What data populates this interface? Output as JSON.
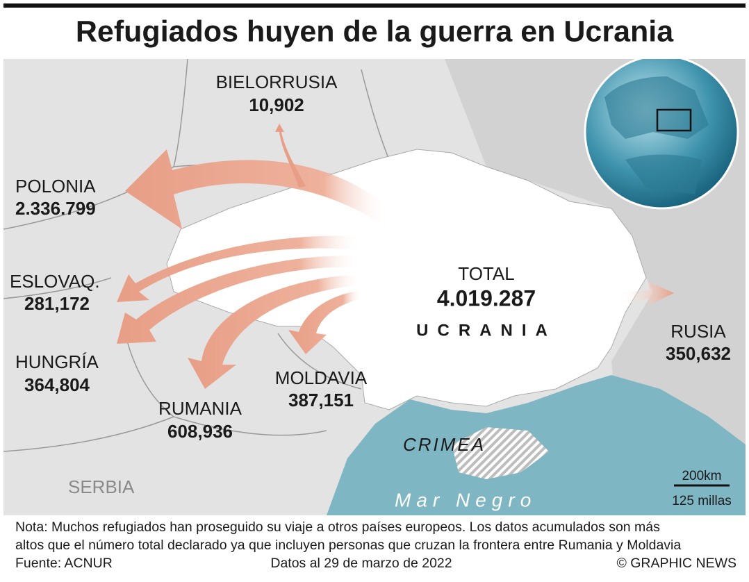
{
  "title": "Refugiados huyen de la guerra en Ucrania",
  "countries": [
    {
      "name": "BIELORRUSIA",
      "refugees": "10,902"
    },
    {
      "name": "POLONIA",
      "refugees": "2.336.799"
    },
    {
      "name": "ESLOVAQ.",
      "refugees": "281,172"
    },
    {
      "name": "HUNGRÍA",
      "refugees": "364,804"
    },
    {
      "name": "RUMANIA",
      "refugees": "608,936"
    },
    {
      "name": "MOLDAVIA",
      "refugees": "387,151"
    },
    {
      "name": "RUSIA",
      "refugees": "350,632"
    }
  ],
  "total": {
    "label": "TOTAL",
    "value": "4.019.287"
  },
  "map_labels": {
    "ukraine": "UCRANIA",
    "crimea": "CRIMEA",
    "serbia": "SERBIA",
    "sea": "Mar Negro"
  },
  "scale": {
    "km": "200km",
    "miles": "125 millas"
  },
  "footer": {
    "note": [
      "Nota: Muchos refugiados han proseguido su viaje a otros países europeos. Los datos acumulados son más",
      "altos que el número total declarado ya que incluyen personas que cruzan la frontera entre Rumania y Moldavia"
    ],
    "source": "Fuente: ACNUR",
    "date": "Datos al 29 de marzo de 2022",
    "credit": "© GRAPHIC NEWS"
  }
}
